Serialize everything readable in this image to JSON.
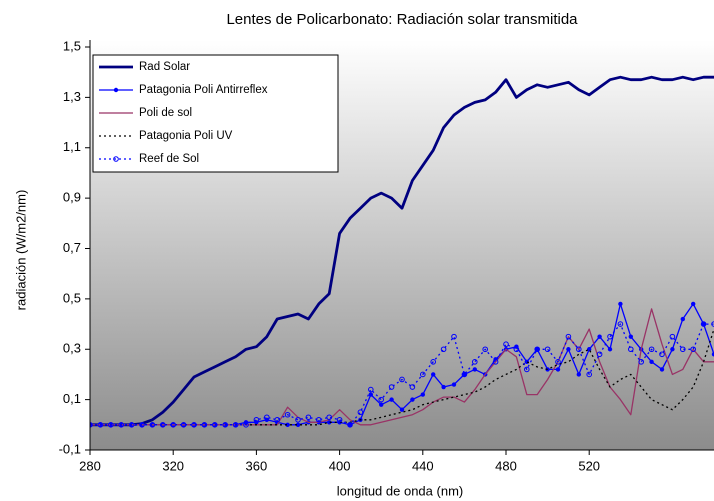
{
  "chart_data": {
    "type": "line",
    "title": "Lentes de Policarbonato: Radiación solar transmitida",
    "xlabel": "longitud de onda (nm)",
    "ylabel": "radiación (W/m2/nm)",
    "x": [
      280,
      285,
      290,
      295,
      300,
      305,
      310,
      315,
      320,
      325,
      330,
      335,
      340,
      345,
      350,
      355,
      360,
      365,
      370,
      375,
      380,
      385,
      390,
      395,
      400,
      405,
      410,
      415,
      420,
      425,
      430,
      435,
      440,
      445,
      450,
      455,
      460,
      465,
      470,
      475,
      480,
      485,
      490,
      495,
      500,
      505,
      510,
      515,
      520,
      525,
      530,
      535,
      540,
      545,
      550,
      555,
      560,
      565,
      570,
      575,
      580
    ],
    "xlim": [
      280,
      580
    ],
    "xticks": [
      280,
      320,
      360,
      400,
      440,
      480,
      520
    ],
    "ylim": [
      -0.1,
      1.5
    ],
    "yticks": [
      {
        "value": -0.1,
        "label": "-0,1"
      },
      {
        "value": 0.1,
        "label": "0,1"
      },
      {
        "value": 0.3,
        "label": "0,3"
      },
      {
        "value": 0.5,
        "label": "0,5"
      },
      {
        "value": 0.7,
        "label": "0,7"
      },
      {
        "value": 0.9,
        "label": "0,9"
      },
      {
        "value": 1.1,
        "label": "1,1"
      },
      {
        "value": 1.3,
        "label": "1,3"
      },
      {
        "value": 1.5,
        "label": "1,5"
      }
    ],
    "grid": false,
    "legend": "upper left",
    "series": [
      {
        "name": "Rad Solar",
        "color": "#000080",
        "style": "solid",
        "marker": "none",
        "values": [
          0,
          0,
          0,
          0,
          0,
          0.005,
          0.02,
          0.05,
          0.09,
          0.14,
          0.19,
          0.21,
          0.23,
          0.25,
          0.27,
          0.3,
          0.31,
          0.35,
          0.42,
          0.43,
          0.44,
          0.42,
          0.48,
          0.52,
          0.76,
          0.82,
          0.86,
          0.9,
          0.92,
          0.9,
          0.86,
          0.97,
          1.03,
          1.09,
          1.18,
          1.23,
          1.26,
          1.28,
          1.29,
          1.32,
          1.37,
          1.3,
          1.33,
          1.35,
          1.34,
          1.35,
          1.36,
          1.33,
          1.31,
          1.34,
          1.37,
          1.38,
          1.37,
          1.37,
          1.38,
          1.37,
          1.37,
          1.38,
          1.37,
          1.38,
          1.38
        ]
      },
      {
        "name": "Patagonia Poli Antirreflex",
        "color": "#0000ff",
        "style": "solid",
        "marker": "dot",
        "values": [
          0,
          0,
          0,
          0,
          0,
          0,
          0,
          0,
          0,
          0,
          0,
          0,
          0,
          0,
          0.0,
          0.01,
          0.01,
          0.02,
          0.01,
          0.0,
          0.0,
          0.01,
          0.01,
          0.01,
          0.01,
          0.0,
          0.02,
          0.12,
          0.08,
          0.1,
          0.06,
          0.1,
          0.12,
          0.2,
          0.15,
          0.16,
          0.2,
          0.22,
          0.2,
          0.26,
          0.3,
          0.31,
          0.25,
          0.3,
          0.22,
          0.22,
          0.3,
          0.2,
          0.3,
          0.35,
          0.3,
          0.48,
          0.35,
          0.3,
          0.25,
          0.22,
          0.3,
          0.42,
          0.48,
          0.4,
          0.28
        ]
      },
      {
        "name": "Poli de sol",
        "color": "#993366",
        "style": "solid",
        "marker": "none",
        "values": [
          0,
          0,
          0,
          0,
          0,
          0,
          0,
          0,
          0,
          0,
          0,
          0,
          0,
          0,
          0,
          0,
          0,
          0,
          0,
          0.07,
          0.03,
          0.01,
          0.01,
          0.02,
          0.06,
          0.02,
          0.0,
          0.0,
          0.01,
          0.02,
          0.03,
          0.04,
          0.06,
          0.09,
          0.11,
          0.11,
          0.09,
          0.14,
          0.2,
          0.25,
          0.3,
          0.27,
          0.12,
          0.12,
          0.18,
          0.25,
          0.35,
          0.3,
          0.38,
          0.25,
          0.15,
          0.1,
          0.04,
          0.3,
          0.46,
          0.32,
          0.2,
          0.22,
          0.3,
          0.25,
          0.25
        ]
      },
      {
        "name": "Patagonia Poli UV",
        "color": "#000000",
        "style": "dotted",
        "marker": "none",
        "values": [
          0,
          0,
          0,
          0,
          0,
          0,
          0,
          0,
          0,
          0,
          0,
          0,
          0,
          0,
          0,
          0,
          0,
          0,
          0,
          0,
          0,
          0,
          0,
          0.01,
          0.01,
          0.01,
          0.02,
          0.02,
          0.03,
          0.04,
          0.05,
          0.06,
          0.08,
          0.09,
          0.1,
          0.11,
          0.12,
          0.13,
          0.15,
          0.18,
          0.2,
          0.22,
          0.25,
          0.23,
          0.22,
          0.24,
          0.25,
          0.28,
          0.3,
          0.22,
          0.15,
          0.18,
          0.2,
          0.15,
          0.1,
          0.08,
          0.06,
          0.1,
          0.15,
          0.25,
          0.38
        ]
      },
      {
        "name": "Reef de Sol",
        "color": "#0000ff",
        "style": "dotted",
        "marker": "circle",
        "values": [
          0,
          0,
          0,
          0,
          0,
          0,
          0,
          0,
          0,
          0,
          0,
          0,
          0,
          0,
          0,
          0,
          0.02,
          0.03,
          0.02,
          0.04,
          0.02,
          0.03,
          0.02,
          0.03,
          0.02,
          0.0,
          0.05,
          0.14,
          0.1,
          0.15,
          0.18,
          0.15,
          0.2,
          0.25,
          0.3,
          0.35,
          0.2,
          0.25,
          0.3,
          0.25,
          0.32,
          0.3,
          0.22,
          0.3,
          0.3,
          0.25,
          0.35,
          0.3,
          0.2,
          0.28,
          0.35,
          0.4,
          0.3,
          0.25,
          0.3,
          0.28,
          0.35,
          0.3,
          0.3,
          0.4,
          0.4
        ]
      }
    ]
  }
}
